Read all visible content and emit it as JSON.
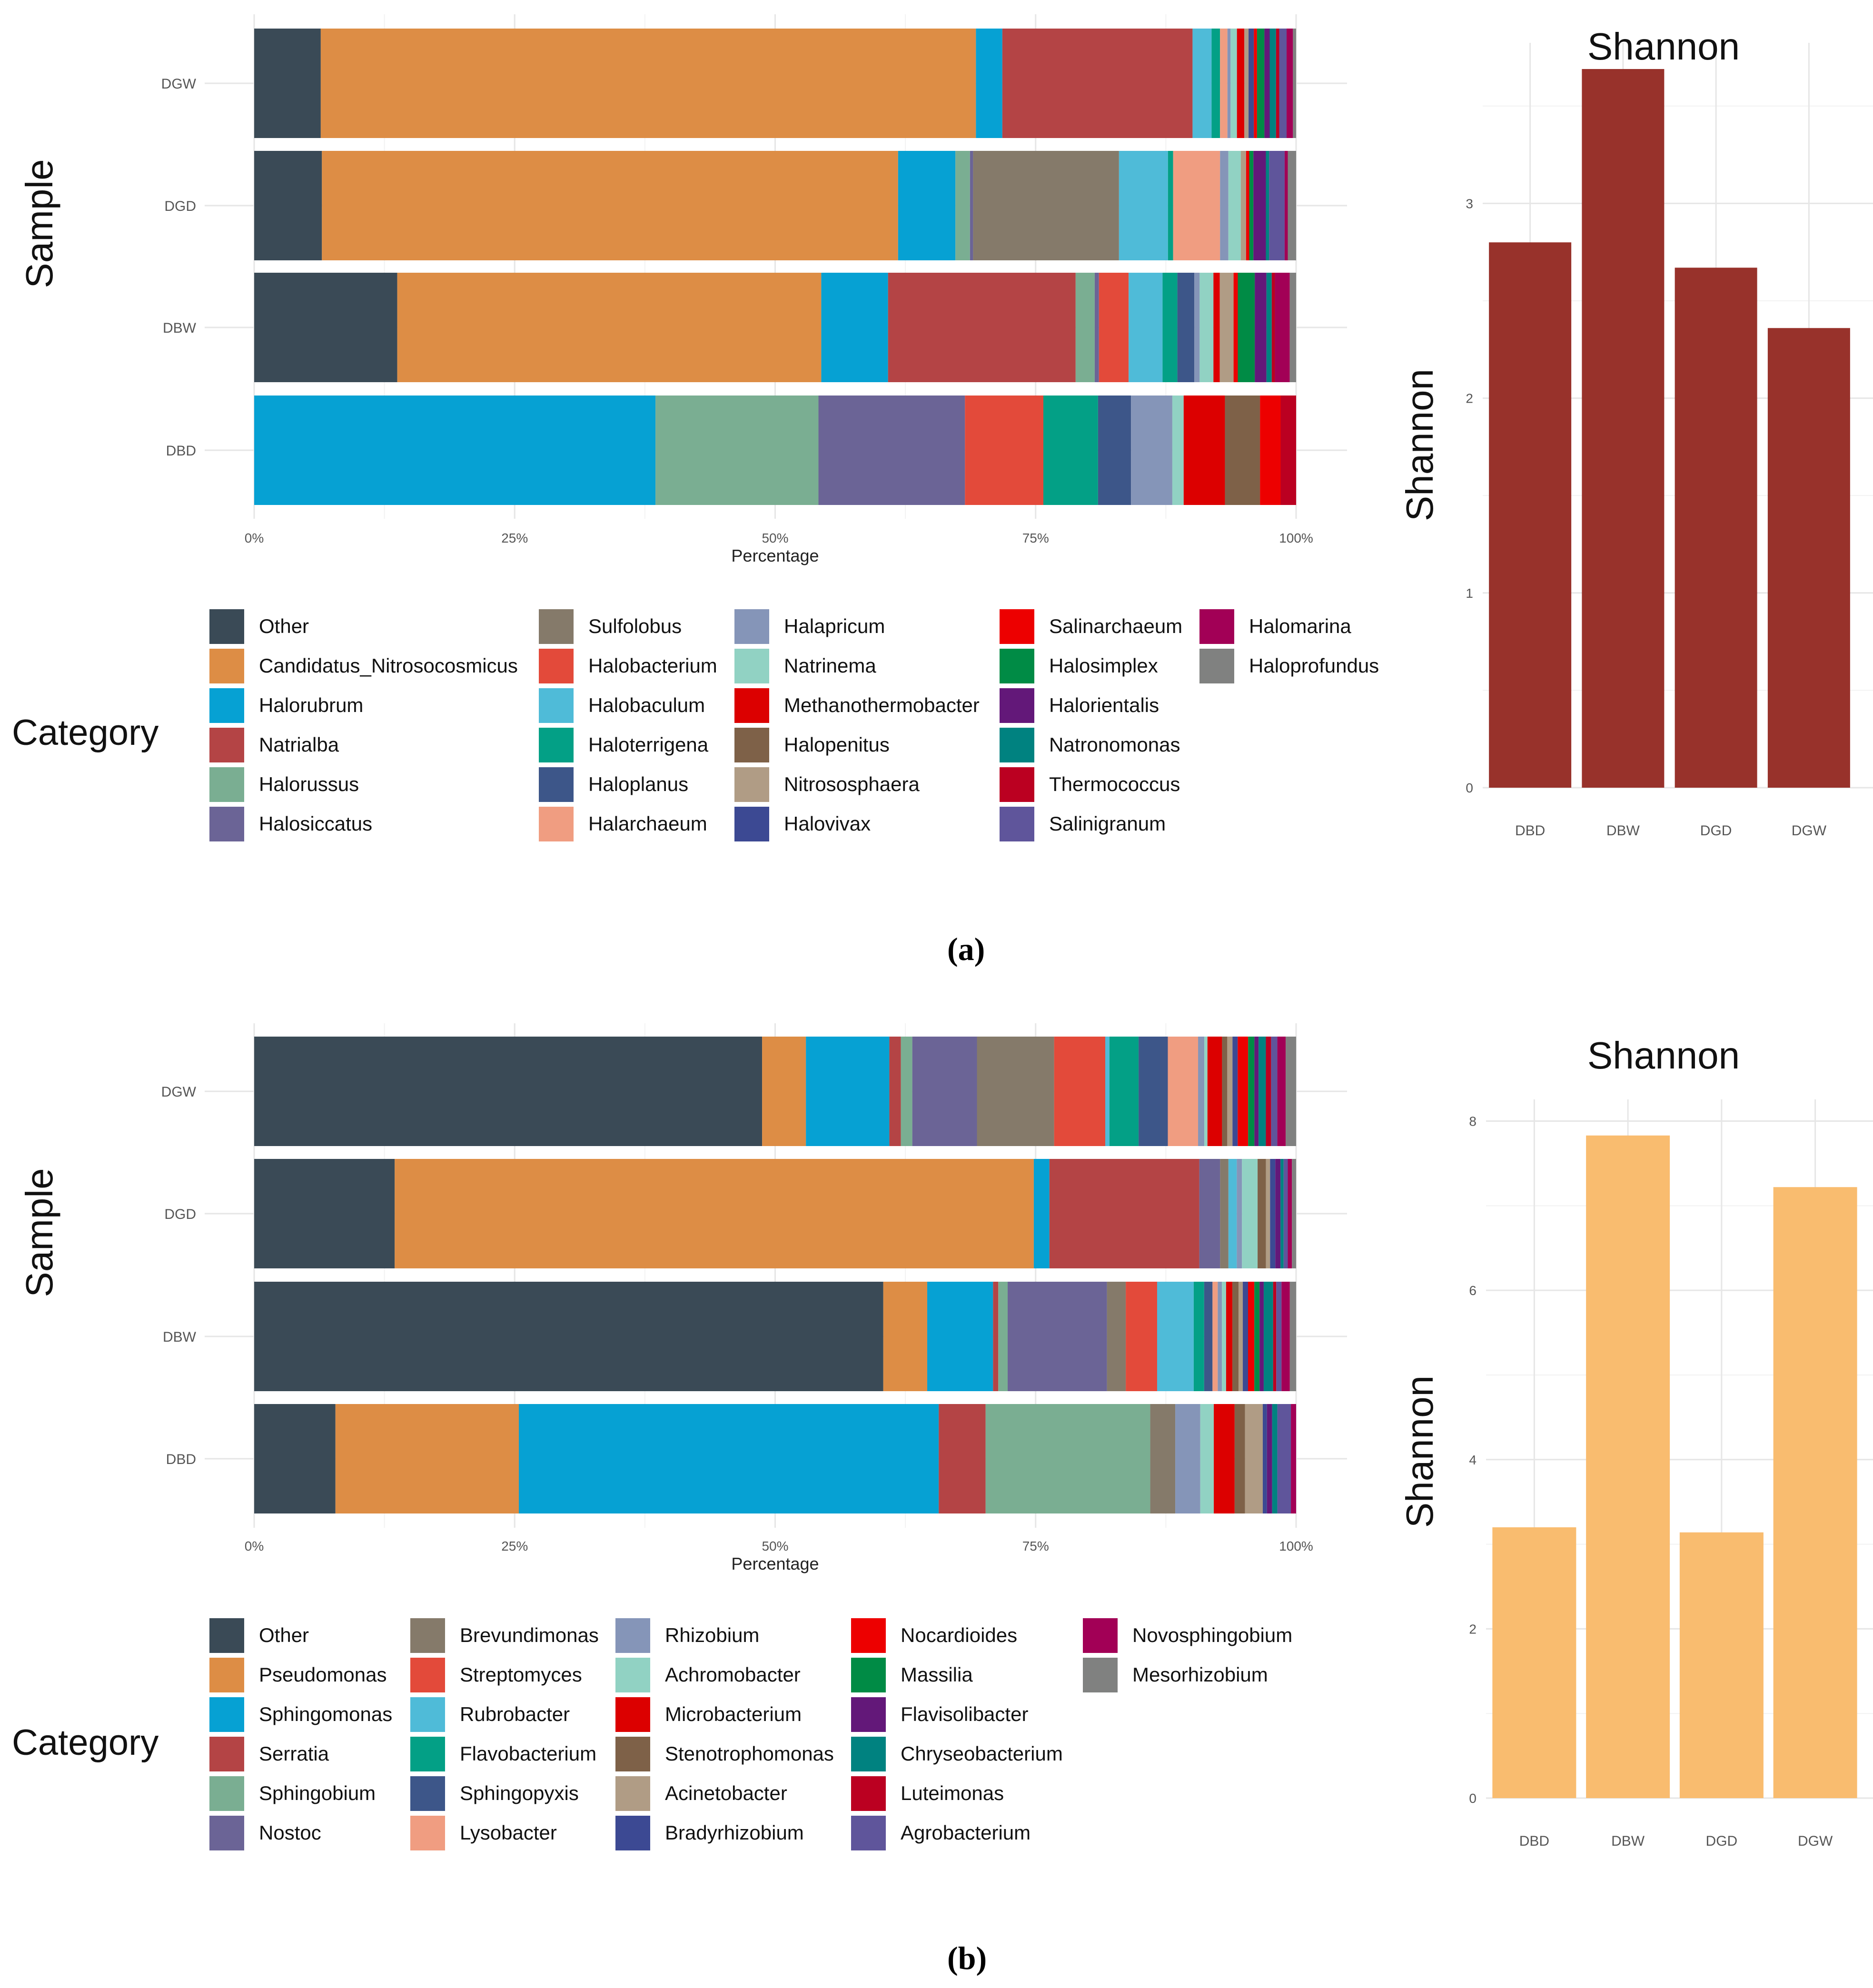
{
  "panel_labels": [
    "(a)",
    "(b)"
  ],
  "chart_data": [
    {
      "type": "bar",
      "orientation": "horizontal-stacked",
      "panel": "a",
      "ylabel": "Sample",
      "xlabel": "Percentage",
      "legend_title": "Category",
      "legend_position": "bottom",
      "xlim": [
        0,
        100
      ],
      "x_ticks": [
        "0%",
        "25%",
        "50%",
        "75%",
        "100%"
      ],
      "samples": [
        "DBD",
        "DBW",
        "DGD",
        "DGW"
      ],
      "legend_columns": 6,
      "series": [
        {
          "name": "Other",
          "color": "#3a4a56",
          "values": [
            0,
            13.5,
            6.5,
            6.3
          ]
        },
        {
          "name": "Candidatus_Nitrosocosmicus",
          "color": "#dd8d45",
          "values": [
            0,
            40.0,
            55.3,
            62.0
          ]
        },
        {
          "name": "Halorubrum",
          "color": "#06a1d3",
          "values": [
            38.9,
            6.3,
            5.5,
            2.5
          ]
        },
        {
          "name": "Natrialba",
          "color": "#b44445",
          "values": [
            0,
            17.7,
            0,
            18.0
          ]
        },
        {
          "name": "Halorussus",
          "color": "#7aae92",
          "values": [
            15.8,
            1.8,
            1.4,
            0
          ]
        },
        {
          "name": "Halosiccatus",
          "color": "#6b6496",
          "values": [
            14.2,
            0.4,
            0.3,
            0
          ]
        },
        {
          "name": "Sulfolobus",
          "color": "#857a6a",
          "values": [
            0,
            0,
            14.0,
            0
          ]
        },
        {
          "name": "Halobacterium",
          "color": "#e34a3a",
          "values": [
            7.6,
            2.8,
            0,
            0
          ]
        },
        {
          "name": "Halobaculum",
          "color": "#4fbbd8",
          "values": [
            0,
            3.2,
            4.7,
            1.8
          ]
        },
        {
          "name": "Haloterrigena",
          "color": "#03a086",
          "values": [
            5.3,
            1.4,
            0.5,
            0.8
          ]
        },
        {
          "name": "Haloplanus",
          "color": "#3d5689",
          "values": [
            3.2,
            1.6,
            0,
            0
          ]
        },
        {
          "name": "Halarchaeum",
          "color": "#f09d81",
          "values": [
            0,
            0,
            4.5,
            0.7
          ]
        },
        {
          "name": "Halapricum",
          "color": "#8595b8",
          "values": [
            4.0,
            0.5,
            0.8,
            0.3
          ]
        },
        {
          "name": "Natrinema",
          "color": "#91d2c3",
          "values": [
            1.1,
            1.3,
            1.2,
            0.6
          ]
        },
        {
          "name": "Methanothermobacter",
          "color": "#dc0000",
          "values": [
            4.0,
            0.6,
            0,
            0.7
          ]
        },
        {
          "name": "Halopenitus",
          "color": "#7e6148",
          "values": [
            3.4,
            0,
            0,
            0
          ]
        },
        {
          "name": "Nitrososphaera",
          "color": "#b09c85",
          "values": [
            0,
            1.3,
            0.5,
            0.4
          ]
        },
        {
          "name": "Halovivax",
          "color": "#3c4993",
          "values": [
            0,
            0,
            0,
            0.5
          ]
        },
        {
          "name": "Salinarchaeum",
          "color": "#ed0000",
          "values": [
            2.0,
            0.4,
            0.3,
            0.3
          ]
        },
        {
          "name": "Halosimplex",
          "color": "#008b45",
          "values": [
            0,
            1.6,
            0.4,
            0.7
          ]
        },
        {
          "name": "Halorientalis",
          "color": "#631879",
          "values": [
            0,
            1.1,
            1.2,
            0.5
          ]
        },
        {
          "name": "Natronomonas",
          "color": "#008280",
          "values": [
            0,
            0.5,
            0.3,
            0.6
          ]
        },
        {
          "name": "Thermococcus",
          "color": "#bb0021",
          "values": [
            1.5,
            0.3,
            0,
            0.3
          ]
        },
        {
          "name": "Salinigranum",
          "color": "#5f559b",
          "values": [
            0,
            0,
            1.5,
            0.7
          ]
        },
        {
          "name": "Halomarina",
          "color": "#a20056",
          "values": [
            0,
            1.4,
            0.3,
            0.6
          ]
        },
        {
          "name": "Haloprofundus",
          "color": "#808180",
          "values": [
            0,
            0.6,
            0.8,
            0.3
          ]
        }
      ]
    },
    {
      "type": "bar",
      "panel": "a",
      "title": "Shannon",
      "ylabel": "Shannon",
      "xlabel": "",
      "categories": [
        "DBD",
        "DBW",
        "DGD",
        "DGW"
      ],
      "values": [
        2.8,
        3.69,
        2.67,
        2.36
      ],
      "ylim": [
        0,
        3.8
      ],
      "y_ticks": [
        "0",
        "1",
        "2",
        "3"
      ],
      "color": "#98322b"
    },
    {
      "type": "bar",
      "orientation": "horizontal-stacked",
      "panel": "b",
      "ylabel": "Sample",
      "xlabel": "Percentage",
      "legend_title": "Category",
      "legend_position": "bottom",
      "xlim": [
        0,
        100
      ],
      "x_ticks": [
        "0%",
        "25%",
        "50%",
        "75%",
        "100%"
      ],
      "samples": [
        "DBD",
        "DBW",
        "DGD",
        "DGW"
      ],
      "legend_columns": 5,
      "series": [
        {
          "name": "Other",
          "color": "#3a4a56",
          "values": [
            7.8,
            60.2,
            13.5,
            48.7
          ]
        },
        {
          "name": "Pseudomonas",
          "color": "#dd8d45",
          "values": [
            17.6,
            4.2,
            61.4,
            4.2
          ]
        },
        {
          "name": "Sphingomonas",
          "color": "#06a1d3",
          "values": [
            40.3,
            6.3,
            1.5,
            8.0
          ]
        },
        {
          "name": "Serratia",
          "color": "#b44445",
          "values": [
            4.5,
            0.5,
            14.4,
            1.1
          ]
        },
        {
          "name": "Sphingobium",
          "color": "#7aae92",
          "values": [
            15.8,
            0.9,
            0,
            1.1
          ]
        },
        {
          "name": "Nostoc",
          "color": "#6b6496",
          "values": [
            0,
            9.5,
            2.0,
            6.2
          ]
        },
        {
          "name": "Brevundimonas",
          "color": "#857a6a",
          "values": [
            2.4,
            1.8,
            0.8,
            7.4
          ]
        },
        {
          "name": "Streptomyces",
          "color": "#e34a3a",
          "values": [
            0,
            3.0,
            0,
            4.9
          ]
        },
        {
          "name": "Rubrobacter",
          "color": "#4fbbd8",
          "values": [
            0,
            3.5,
            0.8,
            0.4
          ]
        },
        {
          "name": "Flavobacterium",
          "color": "#03a086",
          "values": [
            0,
            1.0,
            0,
            2.8
          ]
        },
        {
          "name": "Sphingopyxis",
          "color": "#3d5689",
          "values": [
            0,
            0.8,
            0,
            2.8
          ]
        },
        {
          "name": "Lysobacter",
          "color": "#f09d81",
          "values": [
            0,
            0.5,
            0,
            2.9
          ]
        },
        {
          "name": "Rhizobium",
          "color": "#8595b8",
          "values": [
            2.4,
            0.4,
            0.5,
            0.6
          ]
        },
        {
          "name": "Achromobacter",
          "color": "#91d2c3",
          "values": [
            1.3,
            0.4,
            1.5,
            0.3
          ]
        },
        {
          "name": "Microbacterium",
          "color": "#dc0000",
          "values": [
            2.0,
            0.6,
            0,
            1.4
          ]
        },
        {
          "name": "Stenotrophomonas",
          "color": "#7e6148",
          "values": [
            1.0,
            0.6,
            0.8,
            0.5
          ]
        },
        {
          "name": "Acinetobacter",
          "color": "#b09c85",
          "values": [
            1.7,
            0.4,
            0.4,
            0.5
          ]
        },
        {
          "name": "Bradyrhizobium",
          "color": "#3c4993",
          "values": [
            0.4,
            0.5,
            0.5,
            0.5
          ]
        },
        {
          "name": "Nocardioides",
          "color": "#ed0000",
          "values": [
            0,
            0.6,
            0,
            1.0
          ]
        },
        {
          "name": "Massilia",
          "color": "#008b45",
          "values": [
            0,
            0.5,
            0,
            0.6
          ]
        },
        {
          "name": "Flavisolibacter",
          "color": "#631879",
          "values": [
            0.5,
            0.4,
            0.5,
            0.4
          ]
        },
        {
          "name": "Chryseobacterium",
          "color": "#008280",
          "values": [
            0.5,
            0.9,
            0.3,
            0.7
          ]
        },
        {
          "name": "Luteimonas",
          "color": "#bb0021",
          "values": [
            0,
            0.3,
            0,
            0.5
          ]
        },
        {
          "name": "Agrobacterium",
          "color": "#5f559b",
          "values": [
            1.3,
            0.5,
            0.4,
            0.6
          ]
        },
        {
          "name": "Novosphingobium",
          "color": "#a20056",
          "values": [
            0.5,
            0.8,
            0.4,
            0.8
          ]
        },
        {
          "name": "Mesorhizobium",
          "color": "#808180",
          "values": [
            0,
            0.6,
            0.4,
            1.0
          ]
        }
      ]
    },
    {
      "type": "bar",
      "panel": "b",
      "title": "Shannon",
      "ylabel": "Shannon",
      "xlabel": "",
      "categories": [
        "DBD",
        "DBW",
        "DGD",
        "DGW"
      ],
      "values": [
        3.2,
        7.83,
        3.14,
        7.22
      ],
      "ylim": [
        0,
        8.2
      ],
      "y_ticks": [
        "0",
        "2",
        "4",
        "6",
        "8"
      ],
      "color": "#f9bc6f"
    }
  ]
}
